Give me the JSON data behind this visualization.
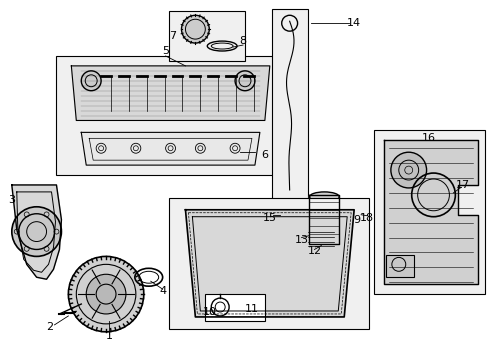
{
  "bg": "#f0f0f0",
  "fg": "#000000",
  "white": "#ffffff",
  "fig_w": 4.9,
  "fig_h": 3.6,
  "dpi": 100
}
